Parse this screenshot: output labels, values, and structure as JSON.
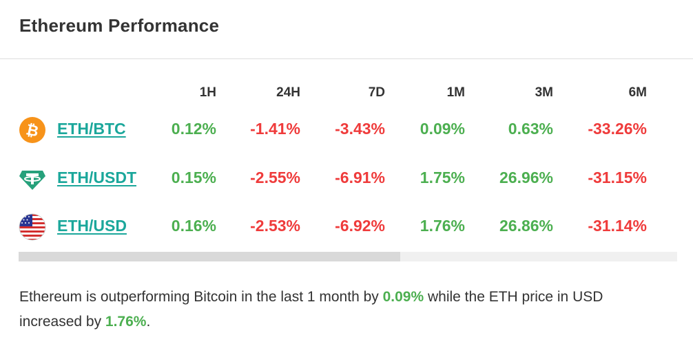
{
  "header": {
    "title": "Ethereum Performance"
  },
  "table": {
    "columns": [
      "1H",
      "24H",
      "7D",
      "1M",
      "3M",
      "6M"
    ],
    "rows": [
      {
        "icon": "bitcoin-icon",
        "pair": "ETH/BTC",
        "values": [
          "0.12%",
          "-1.41%",
          "-3.43%",
          "0.09%",
          "0.63%",
          "-33.26%"
        ]
      },
      {
        "icon": "tether-icon",
        "pair": "ETH/USDT",
        "values": [
          "0.15%",
          "-2.55%",
          "-6.91%",
          "1.75%",
          "26.96%",
          "-31.15%"
        ]
      },
      {
        "icon": "us-flag-icon",
        "pair": "ETH/USD",
        "values": [
          "0.16%",
          "-2.53%",
          "-6.92%",
          "1.76%",
          "26.86%",
          "-31.14%"
        ]
      }
    ]
  },
  "summary": {
    "part1": "Ethereum is outperforming Bitcoin in the last 1 month by ",
    "value1": "0.09%",
    "part2": " while the ETH price in USD increased by ",
    "value2": "1.76%",
    "part3": "."
  },
  "colors": {
    "positive": "#4caf50",
    "negative": "#ef3b3b",
    "link": "#1ba79b",
    "bitcoin": "#f7931a",
    "tether": "#26a17b"
  },
  "scroll": {
    "thumb_fraction": 0.58
  }
}
